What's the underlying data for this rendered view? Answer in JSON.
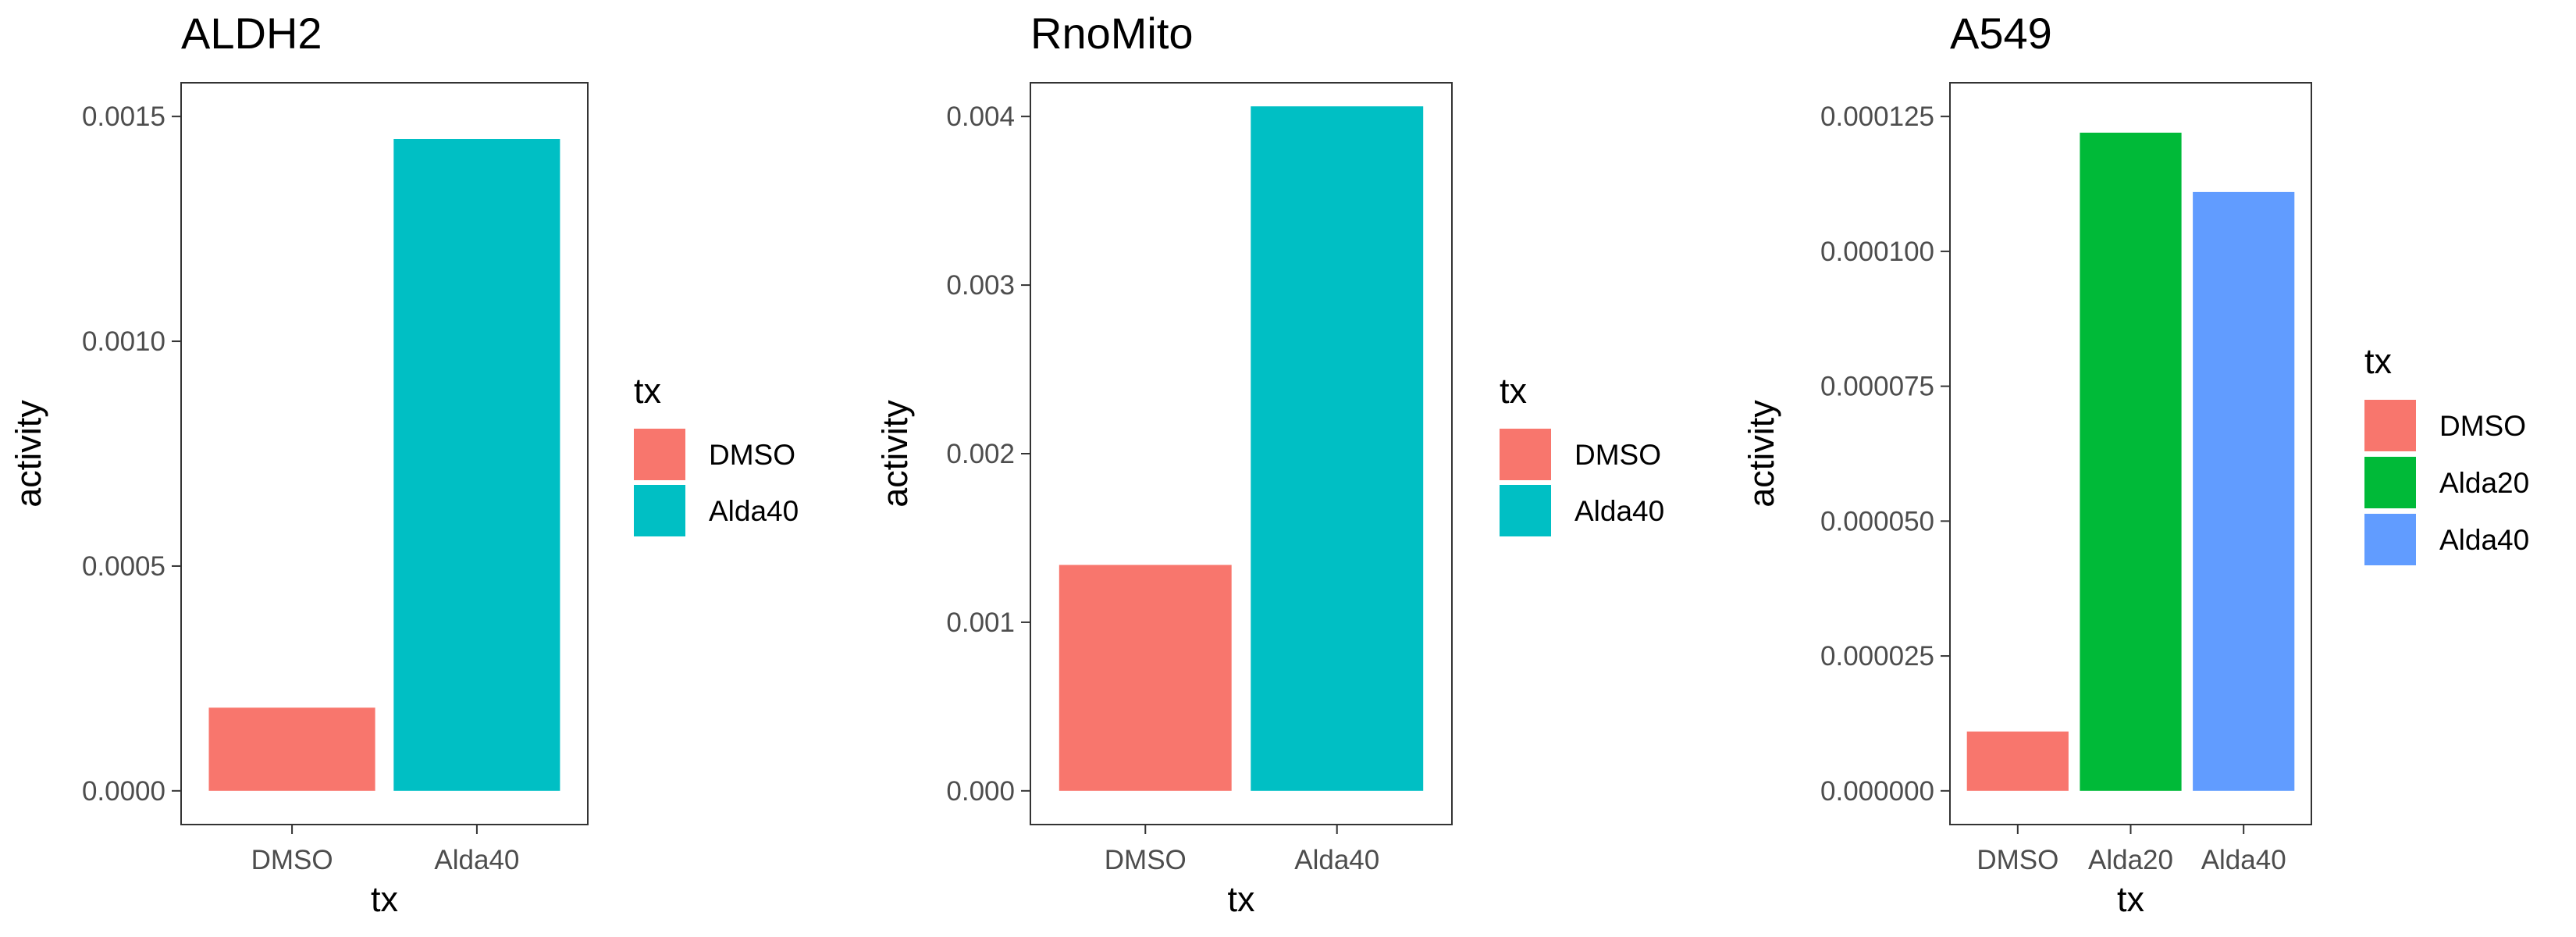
{
  "chart_data": [
    {
      "type": "bar",
      "title": "ALDH2",
      "xlabel": "tx",
      "ylabel": "activity",
      "categories": [
        "DMSO",
        "Alda40"
      ],
      "values": [
        0.000185,
        0.00145
      ],
      "colors": [
        "#F8766D",
        "#00BFC4"
      ],
      "ylim": [
        0,
        0.0015
      ],
      "yticks": [
        0,
        0.0005,
        0.001,
        0.0015
      ],
      "ytick_labels": [
        "0.0000",
        "0.0005",
        "0.0010",
        "0.0015"
      ],
      "grid": false,
      "legend": {
        "title": "tx",
        "placement": "right",
        "items": [
          {
            "label": "DMSO",
            "color": "#F8766D"
          },
          {
            "label": "Alda40",
            "color": "#00BFC4"
          }
        ]
      }
    },
    {
      "type": "bar",
      "title": "RnoMito",
      "xlabel": "tx",
      "ylabel": "activity",
      "categories": [
        "DMSO",
        "Alda40"
      ],
      "values": [
        0.00134,
        0.00406
      ],
      "colors": [
        "#F8766D",
        "#00BFC4"
      ],
      "ylim": [
        0,
        0.004
      ],
      "yticks": [
        0,
        0.001,
        0.002,
        0.003,
        0.004
      ],
      "ytick_labels": [
        "0.000",
        "0.001",
        "0.002",
        "0.003",
        "0.004"
      ],
      "grid": false,
      "legend": {
        "title": "tx",
        "placement": "right",
        "items": [
          {
            "label": "DMSO",
            "color": "#F8766D"
          },
          {
            "label": "Alda40",
            "color": "#00BFC4"
          }
        ]
      }
    },
    {
      "type": "bar",
      "title": "A549",
      "xlabel": "tx",
      "ylabel": "activity",
      "categories": [
        "DMSO",
        "Alda20",
        "Alda40"
      ],
      "values": [
        1.1e-05,
        0.000122,
        0.000111
      ],
      "colors": [
        "#F8766D",
        "#00BA38",
        "#619CFF"
      ],
      "ylim": [
        0,
        0.000125
      ],
      "yticks": [
        0,
        2.5e-05,
        5e-05,
        7.5e-05,
        0.0001,
        0.000125
      ],
      "ytick_labels": [
        "0.000000",
        "0.000025",
        "0.000050",
        "0.000075",
        "0.000100",
        "0.000125"
      ],
      "grid": false,
      "legend": {
        "title": "tx",
        "placement": "right",
        "items": [
          {
            "label": "DMSO",
            "color": "#F8766D"
          },
          {
            "label": "Alda20",
            "color": "#00BA38"
          },
          {
            "label": "Alda40",
            "color": "#619CFF"
          }
        ]
      }
    }
  ]
}
